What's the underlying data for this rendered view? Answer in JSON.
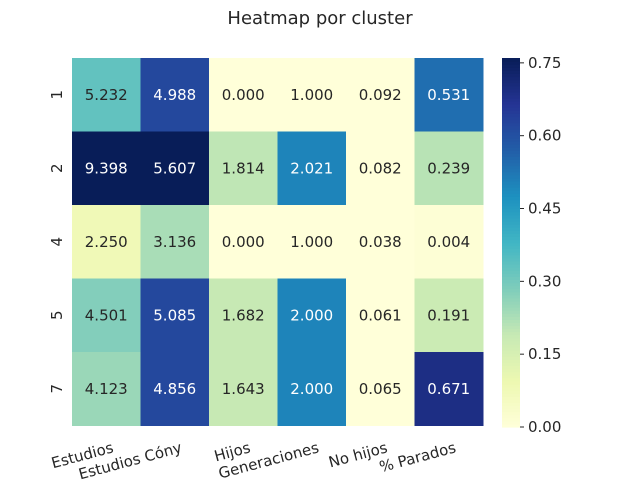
{
  "chart_data": {
    "type": "heatmap",
    "title": "Heatmap por cluster",
    "xlabel": "",
    "ylabel": "",
    "columns": [
      "Estudios",
      "Estudios Cóny",
      "Hijos",
      "Generaciones",
      "No hijos",
      "% Parados"
    ],
    "rows": [
      "1",
      "2",
      "4",
      "5",
      "7"
    ],
    "annotations": [
      [
        "5.232",
        "4.988",
        "0.000",
        "1.000",
        "0.092",
        "0.531"
      ],
      [
        "9.398",
        "5.607",
        "1.814",
        "2.021",
        "0.082",
        "0.239"
      ],
      [
        "2.250",
        "3.136",
        "0.000",
        "1.000",
        "0.038",
        "0.004"
      ],
      [
        "4.501",
        "5.085",
        "1.682",
        "2.000",
        "0.061",
        "0.191"
      ],
      [
        "4.123",
        "4.856",
        "1.643",
        "2.000",
        "0.065",
        "0.671"
      ]
    ],
    "color_values": [
      [
        0.33,
        0.62,
        0.0,
        0.0,
        0.0,
        0.54
      ],
      [
        0.76,
        0.76,
        0.2,
        0.5,
        0.0,
        0.21
      ],
      [
        0.08,
        0.23,
        0.0,
        0.0,
        0.0,
        0.01
      ],
      [
        0.28,
        0.62,
        0.19,
        0.5,
        0.0,
        0.18
      ],
      [
        0.25,
        0.62,
        0.19,
        0.5,
        0.0,
        0.69
      ]
    ],
    "colorbar": {
      "min": 0.0,
      "max": 0.76,
      "ticks": [
        0.0,
        0.15,
        0.3,
        0.45,
        0.6,
        0.75
      ],
      "tick_labels": [
        "0.00",
        "0.15",
        "0.30",
        "0.45",
        "0.60",
        "0.75"
      ],
      "colormap": "YlGnBu"
    },
    "grid": false
  }
}
